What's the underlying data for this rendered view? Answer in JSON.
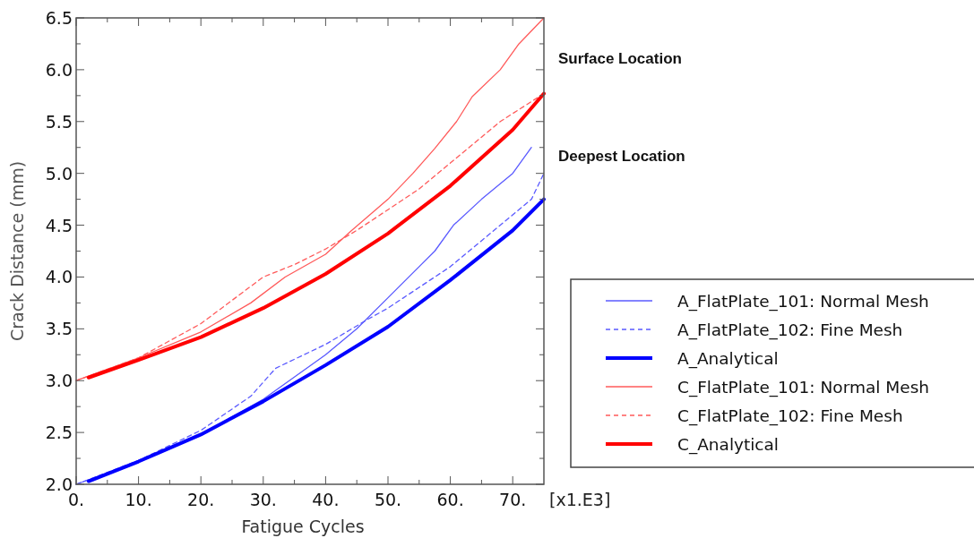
{
  "chart_data": {
    "type": "line",
    "xlabel": "Fatigue Cycles",
    "ylabel": "Crack Distance (mm)",
    "annotations": [
      "[x1.E3]",
      "Surface Location",
      "Deepest Location"
    ],
    "xlim": [
      0,
      75
    ],
    "ylim": [
      2,
      6.5
    ],
    "xticks": [
      {
        "value": 0,
        "label": "0."
      },
      {
        "value": 5,
        "label": null
      },
      {
        "value": 10,
        "label": "10."
      },
      {
        "value": 15,
        "label": null
      },
      {
        "value": 20,
        "label": "20."
      },
      {
        "value": 25,
        "label": null
      },
      {
        "value": 30,
        "label": "30."
      },
      {
        "value": 35,
        "label": null
      },
      {
        "value": 40,
        "label": "40."
      },
      {
        "value": 45,
        "label": null
      },
      {
        "value": 50,
        "label": "50."
      },
      {
        "value": 55,
        "label": null
      },
      {
        "value": 60,
        "label": "60."
      },
      {
        "value": 65,
        "label": null
      },
      {
        "value": 70,
        "label": "70."
      }
    ],
    "yticks": [
      {
        "value": 2,
        "label": "2.0"
      },
      {
        "value": 2.25,
        "label": null
      },
      {
        "value": 2.5,
        "label": "2.5"
      },
      {
        "value": 2.75,
        "label": null
      },
      {
        "value": 3,
        "label": "3.0"
      },
      {
        "value": 3.25,
        "label": null
      },
      {
        "value": 3.5,
        "label": "3.5"
      },
      {
        "value": 3.75,
        "label": null
      },
      {
        "value": 4,
        "label": "4.0"
      },
      {
        "value": 4.25,
        "label": null
      },
      {
        "value": 4.5,
        "label": "4.5"
      },
      {
        "value": 4.75,
        "label": null
      },
      {
        "value": 5,
        "label": "5.0"
      },
      {
        "value": 5.25,
        "label": null
      },
      {
        "value": 5.5,
        "label": "5.5"
      },
      {
        "value": 5.75,
        "label": null
      },
      {
        "value": 6,
        "label": "6.0"
      },
      {
        "value": 6.25,
        "label": null
      },
      {
        "value": 6.5,
        "label": "6.5"
      }
    ],
    "grid": false,
    "legend": "right",
    "marker": "none",
    "series": [
      {
        "name": "A_FlatPlate_101: Normal Mesh",
        "color": "#5a5aff",
        "line_style": "solid",
        "x": [
          0,
          10,
          20,
          30,
          40,
          45,
          50,
          55,
          57.5,
          60.5,
          65,
          70,
          73
        ],
        "values": [
          2.0,
          2.22,
          2.48,
          2.82,
          3.25,
          3.5,
          3.8,
          4.1,
          4.25,
          4.5,
          4.75,
          5.0,
          5.25
        ]
      },
      {
        "name": "A_FlatPlate_102: Fine Mesh",
        "color": "#5a5aff",
        "line_style": "dashed",
        "x": [
          0,
          10,
          20,
          28,
          32,
          40,
          47,
          50,
          55,
          60,
          65,
          70,
          73,
          75
        ],
        "values": [
          2.0,
          2.23,
          2.52,
          2.85,
          3.12,
          3.35,
          3.6,
          3.7,
          3.9,
          4.1,
          4.35,
          4.6,
          4.75,
          5.0
        ]
      },
      {
        "name": "A_Analytical",
        "color": "#0000ff",
        "line_style": "solid",
        "x": [
          2,
          10,
          20,
          30,
          40,
          50,
          60,
          70,
          75
        ],
        "values": [
          2.03,
          2.22,
          2.48,
          2.8,
          3.15,
          3.52,
          3.97,
          4.45,
          4.75
        ]
      },
      {
        "name": "C_FlatPlate_101: Normal Mesh",
        "color": "#ff5a5a",
        "line_style": "solid",
        "x": [
          0,
          10,
          20,
          28,
          33.5,
          40,
          44,
          50,
          54,
          57.5,
          61,
          63.5,
          68,
          71,
          75
        ],
        "values": [
          3.0,
          3.22,
          3.47,
          3.75,
          4.0,
          4.22,
          4.44,
          4.75,
          5.0,
          5.24,
          5.5,
          5.74,
          6.0,
          6.25,
          6.5
        ]
      },
      {
        "name": "C_FlatPlate_102: Fine Mesh",
        "color": "#ff5a5a",
        "line_style": "dashed",
        "x": [
          0,
          10,
          20,
          30,
          35,
          40,
          45,
          50,
          55,
          60,
          65,
          68,
          75
        ],
        "values": [
          3.0,
          3.22,
          3.55,
          4.0,
          4.12,
          4.27,
          4.45,
          4.65,
          4.85,
          5.1,
          5.35,
          5.5,
          5.77
        ]
      },
      {
        "name": "C_Analytical",
        "color": "#ff0000",
        "line_style": "solid",
        "x": [
          2,
          10,
          20,
          30,
          40,
          50,
          60,
          70,
          75
        ],
        "values": [
          3.03,
          3.2,
          3.42,
          3.7,
          4.03,
          4.42,
          4.88,
          5.42,
          5.77
        ]
      }
    ]
  }
}
